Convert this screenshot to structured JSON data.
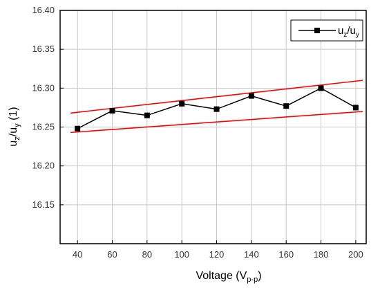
{
  "chart_data": {
    "type": "line",
    "title": "",
    "xlabel": {
      "main": "Voltage (V",
      "sub": "p-p",
      "close": ")"
    },
    "ylabel": {
      "u1": "u",
      "sub1": "z",
      "mid": "/u",
      "sub2": "y",
      "end": " (1)"
    },
    "xlim": [
      30,
      206
    ],
    "ylim": [
      16.1,
      16.4
    ],
    "x_ticks": [
      40,
      60,
      80,
      100,
      120,
      140,
      160,
      180,
      200
    ],
    "y_ticks": [
      16.15,
      16.2,
      16.25,
      16.3,
      16.35,
      16.4
    ],
    "y_tick_labels": [
      "16.15",
      "16.20",
      "16.25",
      "16.30",
      "16.35",
      "16.40"
    ],
    "x_tick_labels": [
      "40",
      "60",
      "80",
      "100",
      "120",
      "140",
      "160",
      "180",
      "200"
    ],
    "grid": true,
    "legend_placement": "top-right",
    "series": [
      {
        "name": {
          "main": "u",
          "sub1": "z",
          "mid": "/u",
          "sub2": "y"
        },
        "color": "#000000",
        "marker": "square",
        "x": [
          40,
          60,
          80,
          100,
          120,
          140,
          160,
          180,
          200
        ],
        "y": [
          16.248,
          16.271,
          16.265,
          16.28,
          16.273,
          16.29,
          16.277,
          16.3,
          16.275
        ]
      }
    ],
    "bound_lines": [
      {
        "color": "#ff0000",
        "x": [
          36,
          204
        ],
        "y": [
          16.268,
          16.31
        ]
      },
      {
        "color": "#ff0000",
        "x": [
          36,
          204
        ],
        "y": [
          16.243,
          16.27
        ]
      }
    ]
  }
}
